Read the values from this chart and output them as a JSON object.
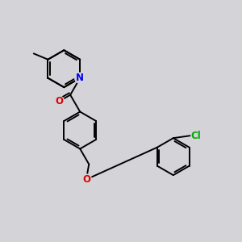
{
  "background_color": "#d4d4d8",
  "bond_color": "#000000",
  "N_color": "#0000ee",
  "O_color": "#dd0000",
  "Cl_color": "#00aa00",
  "line_width": 1.4,
  "figsize": [
    3.0,
    3.0
  ],
  "dpi": 100,
  "xlim": [
    0,
    10
  ],
  "ylim": [
    0,
    10
  ]
}
